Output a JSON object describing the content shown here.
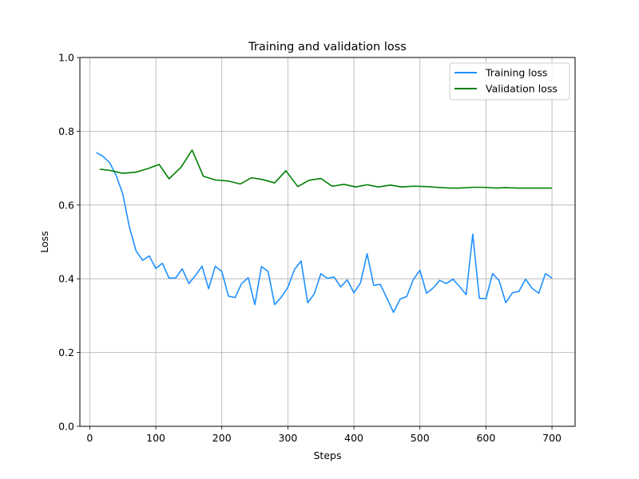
{
  "chart_data": {
    "type": "line",
    "title": "Training and validation loss",
    "xlabel": "Steps",
    "ylabel": "Loss",
    "xlim": [
      -15,
      735
    ],
    "ylim": [
      0,
      1
    ],
    "xticks": [
      0,
      100,
      200,
      300,
      400,
      500,
      600,
      700
    ],
    "xtick_labels": [
      "0",
      "100",
      "200",
      "300",
      "400",
      "500",
      "600",
      "700"
    ],
    "yticks": [
      0,
      0.2,
      0.4,
      0.6,
      0.8,
      1.0
    ],
    "ytick_labels": [
      "0.0",
      "0.2",
      "0.4",
      "0.6",
      "0.8",
      "1.0"
    ],
    "grid": true,
    "legend_position": "top-right",
    "series": [
      {
        "name": "Training loss",
        "color": "#1e90ff",
        "x": [
          10,
          20,
          30,
          40,
          50,
          60,
          70,
          80,
          90,
          100,
          110,
          120,
          130,
          140,
          150,
          160,
          170,
          180,
          190,
          200,
          210,
          220,
          230,
          240,
          250,
          260,
          270,
          280,
          290,
          300,
          310,
          320,
          330,
          340,
          350,
          360,
          370,
          380,
          390,
          400,
          410,
          420,
          430,
          440,
          450,
          460,
          470,
          480,
          490,
          500,
          510,
          520,
          530,
          540,
          550,
          560,
          570,
          580,
          590,
          600,
          610,
          620,
          630,
          640,
          650,
          660,
          670,
          680,
          690,
          700
        ],
        "y": [
          0.742,
          0.732,
          0.715,
          0.68,
          0.63,
          0.54,
          0.476,
          0.45,
          0.462,
          0.428,
          0.442,
          0.402,
          0.402,
          0.427,
          0.387,
          0.409,
          0.434,
          0.373,
          0.434,
          0.42,
          0.353,
          0.349,
          0.387,
          0.403,
          0.33,
          0.433,
          0.42,
          0.33,
          0.35,
          0.377,
          0.425,
          0.448,
          0.335,
          0.359,
          0.414,
          0.401,
          0.405,
          0.378,
          0.397,
          0.362,
          0.389,
          0.468,
          0.382,
          0.385,
          0.347,
          0.309,
          0.345,
          0.352,
          0.398,
          0.423,
          0.361,
          0.375,
          0.396,
          0.387,
          0.399,
          0.379,
          0.357,
          0.521,
          0.347,
          0.346,
          0.414,
          0.395,
          0.335,
          0.362,
          0.366,
          0.399,
          0.374,
          0.361,
          0.414,
          0.402
        ]
      },
      {
        "name": "Validation loss",
        "color": "#008000",
        "x": [
          15,
          30,
          50,
          70,
          90,
          105,
          120,
          138,
          155,
          172,
          190,
          210,
          228,
          245,
          262,
          280,
          297,
          315,
          332,
          350,
          367,
          385,
          403,
          420,
          437,
          455,
          472,
          490,
          510,
          525,
          545,
          560,
          580,
          597,
          615,
          630,
          647,
          665,
          682,
          700
        ],
        "y": [
          0.697,
          0.694,
          0.686,
          0.689,
          0.7,
          0.71,
          0.671,
          0.702,
          0.749,
          0.678,
          0.668,
          0.665,
          0.657,
          0.674,
          0.669,
          0.66,
          0.693,
          0.65,
          0.667,
          0.672,
          0.651,
          0.656,
          0.649,
          0.655,
          0.649,
          0.654,
          0.649,
          0.651,
          0.65,
          0.648,
          0.646,
          0.646,
          0.648,
          0.648,
          0.646,
          0.647,
          0.646,
          0.646,
          0.646,
          0.646
        ]
      }
    ]
  }
}
